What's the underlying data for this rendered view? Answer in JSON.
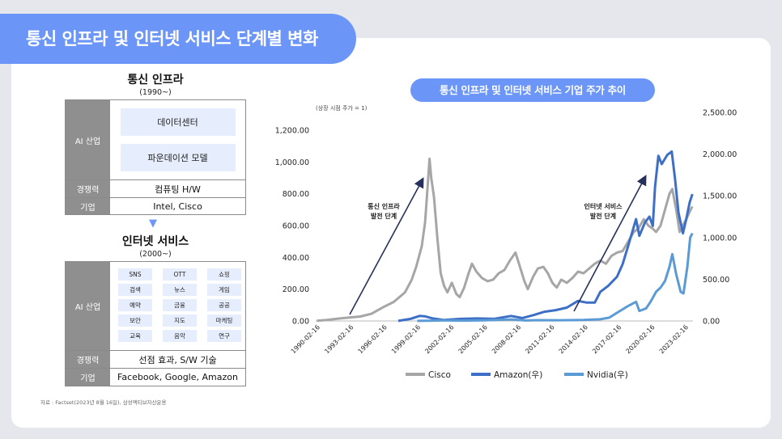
{
  "header": {
    "title": "통신 인프라 및 인터넷 서비스 단계별 변화"
  },
  "stage1": {
    "title": "통신 인프라",
    "period": "(1990~)",
    "industry_label": "AI 산업",
    "industry_items": [
      "데이터센터",
      "파운데이션 모델"
    ],
    "competitiveness_label": "경쟁력",
    "competitiveness": "컴퓨팅 H/W",
    "companies_label": "기업",
    "companies": "Intel, Cisco"
  },
  "stage2": {
    "title": "인터넷 서비스",
    "period": "(2000~)",
    "industry_label": "AI 산업",
    "services": [
      "SNS",
      "OTT",
      "쇼핑",
      "검색",
      "뉴스",
      "게임",
      "예약",
      "금융",
      "공공",
      "보안",
      "지도",
      "마케팅",
      "교육",
      "음악",
      "연구"
    ],
    "competitiveness_label": "경쟁력",
    "competitiveness": "선점 효과, S/W 기술",
    "companies_label": "기업",
    "companies": "Facebook, Google, Amazon"
  },
  "source": "자료 : Factset(2023년 8월 16일), 삼성액티브자산운용",
  "colors": {
    "accent": "#6b95f6",
    "cisco": "#a6a6a6",
    "amazon": "#3e6fc6",
    "nvidia": "#5b9bd5",
    "label_bg": "#8f8f8f",
    "box_bg": "#e6edfd"
  },
  "chart_data": {
    "type": "line",
    "title": "통신 인프라 및 인터넷 서비스 기업 주가 추이",
    "note": "(상장 시점 주가 = 1)",
    "x_ticks": [
      "1990-02-16",
      "1993-02-16",
      "1996-02-16",
      "1999-02-16",
      "2002-02-16",
      "2005-02-16",
      "2008-02-16",
      "2011-02-16",
      "2014-02-16",
      "2017-02-16",
      "2020-02-16",
      "2023-02-16"
    ],
    "xlim": [
      1990.0,
      2023.8
    ],
    "y_left": {
      "lim": [
        0,
        1200
      ],
      "ticks": [
        "0.00",
        "200.00",
        "400.00",
        "600.00",
        "800.00",
        "1,000.00",
        "1,200.00"
      ]
    },
    "y_right": {
      "lim": [
        0,
        2500
      ],
      "ticks": [
        "0.00",
        "500.00",
        "1,000.00",
        "1,500.00",
        "2,000.00",
        "2,500.00"
      ]
    },
    "grid": false,
    "legend_position": "bottom",
    "annotations": [
      {
        "text": [
          "통신 인프라",
          "발전 단계"
        ]
      },
      {
        "text": [
          "인터넷 서비스",
          "발전 단계"
        ]
      }
    ],
    "series": [
      {
        "name": "Cisco",
        "axis": "left",
        "color": "#a6a6a6",
        "points": [
          [
            1990.1,
            1
          ],
          [
            1991,
            6
          ],
          [
            1992,
            15
          ],
          [
            1993,
            22
          ],
          [
            1994,
            28
          ],
          [
            1995,
            45
          ],
          [
            1996,
            85
          ],
          [
            1997,
            120
          ],
          [
            1998,
            180
          ],
          [
            1998.6,
            260
          ],
          [
            1999,
            340
          ],
          [
            1999.5,
            470
          ],
          [
            1999.8,
            620
          ],
          [
            2000.0,
            820
          ],
          [
            2000.2,
            1020
          ],
          [
            2000.35,
            900
          ],
          [
            2000.6,
            780
          ],
          [
            2000.9,
            520
          ],
          [
            2001.2,
            300
          ],
          [
            2001.5,
            220
          ],
          [
            2001.8,
            180
          ],
          [
            2002.2,
            240
          ],
          [
            2002.6,
            170
          ],
          [
            2002.9,
            150
          ],
          [
            2003.3,
            210
          ],
          [
            2003.7,
            300
          ],
          [
            2004.0,
            360
          ],
          [
            2004.4,
            310
          ],
          [
            2004.9,
            270
          ],
          [
            2005.4,
            250
          ],
          [
            2005.9,
            260
          ],
          [
            2006.4,
            300
          ],
          [
            2006.9,
            320
          ],
          [
            2007.4,
            380
          ],
          [
            2007.9,
            430
          ],
          [
            2008.3,
            340
          ],
          [
            2008.7,
            250
          ],
          [
            2009.0,
            200
          ],
          [
            2009.5,
            280
          ],
          [
            2009.9,
            330
          ],
          [
            2010.4,
            340
          ],
          [
            2010.8,
            300
          ],
          [
            2011.2,
            240
          ],
          [
            2011.6,
            210
          ],
          [
            2012.0,
            260
          ],
          [
            2012.5,
            240
          ],
          [
            2013.0,
            270
          ],
          [
            2013.5,
            310
          ],
          [
            2014.0,
            300
          ],
          [
            2014.5,
            330
          ],
          [
            2015.0,
            360
          ],
          [
            2015.5,
            380
          ],
          [
            2016.0,
            360
          ],
          [
            2016.5,
            410
          ],
          [
            2017.0,
            430
          ],
          [
            2017.5,
            440
          ],
          [
            2018.0,
            500
          ],
          [
            2018.5,
            560
          ],
          [
            2018.9,
            580
          ],
          [
            2019.4,
            640
          ],
          [
            2019.8,
            600
          ],
          [
            2020.2,
            580
          ],
          [
            2020.5,
            560
          ],
          [
            2020.9,
            600
          ],
          [
            2021.3,
            700
          ],
          [
            2021.7,
            800
          ],
          [
            2021.95,
            830
          ],
          [
            2022.3,
            700
          ],
          [
            2022.6,
            560
          ],
          [
            2022.9,
            600
          ],
          [
            2023.2,
            640
          ],
          [
            2023.6,
            700
          ],
          [
            2023.75,
            720
          ]
        ]
      },
      {
        "name": "Amazon(우)",
        "axis": "right",
        "color": "#3e6fc6",
        "points": [
          [
            1997.4,
            1
          ],
          [
            1998.5,
            25
          ],
          [
            1999.3,
            60
          ],
          [
            1999.8,
            55
          ],
          [
            2000.5,
            30
          ],
          [
            2001.5,
            12
          ],
          [
            2003,
            25
          ],
          [
            2004.5,
            30
          ],
          [
            2006,
            25
          ],
          [
            2007.5,
            60
          ],
          [
            2008.5,
            35
          ],
          [
            2009.5,
            70
          ],
          [
            2010.5,
            110
          ],
          [
            2011.5,
            130
          ],
          [
            2012.5,
            160
          ],
          [
            2013.5,
            240
          ],
          [
            2014.3,
            220
          ],
          [
            2015.0,
            220
          ],
          [
            2015.5,
            350
          ],
          [
            2016.2,
            420
          ],
          [
            2017.0,
            530
          ],
          [
            2017.5,
            680
          ],
          [
            2018.0,
            900
          ],
          [
            2018.7,
            1220
          ],
          [
            2019.0,
            1020
          ],
          [
            2019.5,
            1180
          ],
          [
            2019.9,
            1250
          ],
          [
            2020.2,
            1140
          ],
          [
            2020.4,
            1600
          ],
          [
            2020.7,
            1980
          ],
          [
            2021.0,
            1880
          ],
          [
            2021.5,
            1990
          ],
          [
            2021.9,
            2030
          ],
          [
            2022.2,
            1700
          ],
          [
            2022.5,
            1300
          ],
          [
            2022.9,
            1050
          ],
          [
            2023.2,
            1220
          ],
          [
            2023.5,
            1420
          ],
          [
            2023.75,
            1520
          ]
        ]
      },
      {
        "name": "Nvidia(우)",
        "axis": "right",
        "color": "#5b9bd5",
        "points": [
          [
            1999.1,
            1
          ],
          [
            2000.5,
            4
          ],
          [
            2001.5,
            8
          ],
          [
            2003,
            4
          ],
          [
            2005,
            8
          ],
          [
            2007.5,
            18
          ],
          [
            2008.8,
            6
          ],
          [
            2010,
            10
          ],
          [
            2012,
            9
          ],
          [
            2014,
            12
          ],
          [
            2015.5,
            20
          ],
          [
            2016.3,
            40
          ],
          [
            2016.9,
            90
          ],
          [
            2017.5,
            140
          ],
          [
            2018.0,
            180
          ],
          [
            2018.7,
            230
          ],
          [
            2019.0,
            120
          ],
          [
            2019.6,
            150
          ],
          [
            2020.0,
            230
          ],
          [
            2020.5,
            350
          ],
          [
            2020.9,
            400
          ],
          [
            2021.3,
            480
          ],
          [
            2021.7,
            650
          ],
          [
            2021.95,
            800
          ],
          [
            2022.3,
            560
          ],
          [
            2022.7,
            350
          ],
          [
            2022.95,
            330
          ],
          [
            2023.3,
            650
          ],
          [
            2023.55,
            1000
          ],
          [
            2023.75,
            1050
          ]
        ]
      }
    ]
  }
}
